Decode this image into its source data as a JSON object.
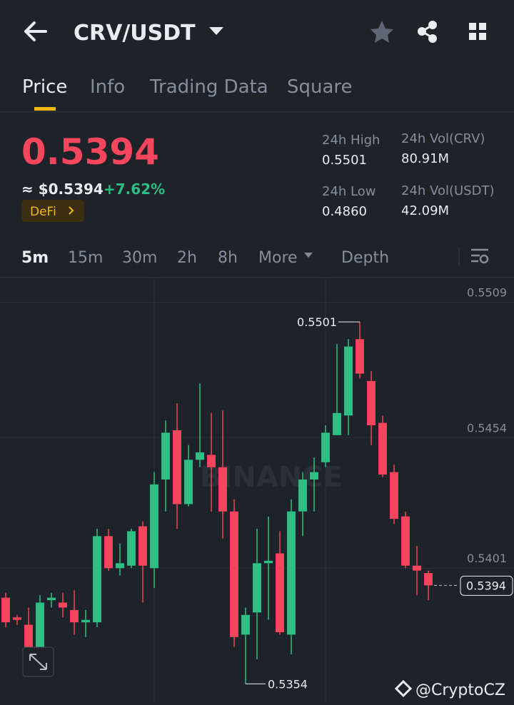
{
  "header": {
    "title": "CRV/USDT"
  },
  "tabs": [
    "Price",
    "Info",
    "Trading Data",
    "Square"
  ],
  "ticker": {
    "price": "0.5394",
    "usd_price": "≈ $0.5394",
    "change": "+7.62%",
    "tag": "DeFi",
    "stats": [
      {
        "label": "24h High",
        "value": "0.5501"
      },
      {
        "label": "24h Vol(CRV)",
        "value": "80.91M"
      },
      {
        "label": "24h Low",
        "value": "0.4860"
      },
      {
        "label": "24h Vol(USDT)",
        "value": "42.09M"
      }
    ]
  },
  "intervals": [
    "5m",
    "15m",
    "30m",
    "2h",
    "8h",
    "More",
    "Depth"
  ],
  "chart_data": {
    "type": "candlestick",
    "ylim": [
      0.5346,
      0.5519
    ],
    "yticks": [
      0.5509,
      0.5454,
      0.5401
    ],
    "up_color": "#2ebd85",
    "down_color": "#f6465d",
    "grid": true,
    "open": [
      0.5389,
      0.5381,
      0.5378,
      0.5369,
      0.5388,
      0.5387,
      0.5384,
      0.5379,
      0.5379,
      0.5414,
      0.5401,
      0.5402,
      0.5418,
      0.5401,
      0.5437,
      0.5457,
      0.5427,
      0.5445,
      0.5447,
      0.5442,
      0.5424,
      0.5374,
      0.5383,
      0.5403,
      0.5407,
      0.5374,
      0.5424,
      0.5437,
      0.5444,
      0.5455,
      0.5463,
      0.5494,
      0.5477,
      0.546,
      0.544,
      0.5422,
      0.5402,
      0.5399
    ],
    "high": [
      0.5391,
      0.5382,
      0.5385,
      0.539,
      0.5391,
      0.5391,
      0.5392,
      0.5384,
      0.5417,
      0.5417,
      0.5411,
      0.5417,
      0.542,
      0.544,
      0.5461,
      0.5468,
      0.5451,
      0.5476,
      0.5464,
      0.5465,
      0.5429,
      0.5385,
      0.5417,
      0.5422,
      0.5416,
      0.5429,
      0.544,
      0.5446,
      0.5459,
      0.5492,
      0.5494,
      0.5501,
      0.5481,
      0.5463,
      0.5443,
      0.5424,
      0.541,
      0.54
    ],
    "low": [
      0.5377,
      0.5378,
      0.5361,
      0.5367,
      0.5385,
      0.5381,
      0.5374,
      0.5373,
      0.5377,
      0.54,
      0.5398,
      0.5401,
      0.5387,
      0.5393,
      0.5424,
      0.5417,
      0.5426,
      0.5442,
      0.5424,
      0.5413,
      0.5369,
      0.5354,
      0.5364,
      0.538,
      0.5374,
      0.5366,
      0.5414,
      0.5424,
      0.5442,
      0.5455,
      0.5455,
      0.5478,
      0.5451,
      0.5438,
      0.5419,
      0.5401,
      0.539,
      0.5388
    ],
    "close": [
      0.5379,
      0.538,
      0.5369,
      0.5387,
      0.5389,
      0.5385,
      0.5379,
      0.538,
      0.5414,
      0.5401,
      0.5403,
      0.5416,
      0.5402,
      0.5435,
      0.5456,
      0.5427,
      0.5445,
      0.5448,
      0.5442,
      0.5424,
      0.5373,
      0.5382,
      0.5403,
      0.5404,
      0.5375,
      0.5424,
      0.5437,
      0.544,
      0.5456,
      0.5464,
      0.5491,
      0.548,
      0.5459,
      0.5439,
      0.5421,
      0.5402,
      0.54,
      0.5394
    ],
    "watermark": "BINANCE"
  },
  "footer": {
    "credit": "@CryptoCZ"
  }
}
